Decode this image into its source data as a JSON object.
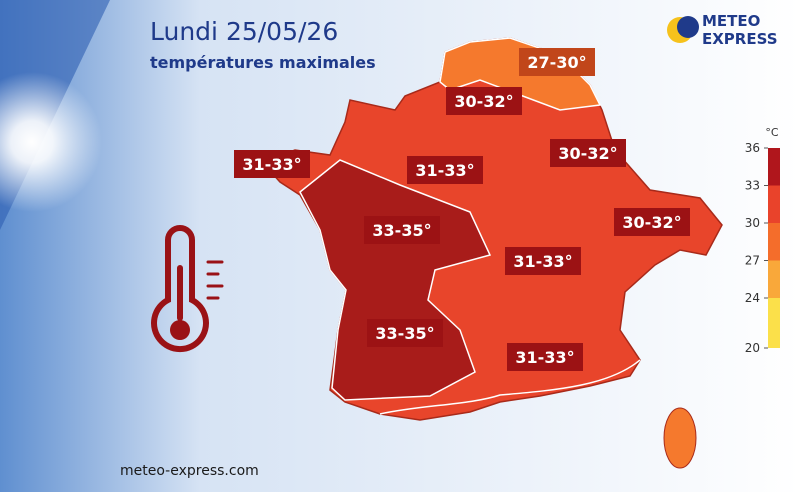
{
  "header": {
    "title": "Lundi 25/05/26",
    "subtitle": "températures maximales"
  },
  "logo": {
    "line1": "METEO",
    "line2": "EXPRESS"
  },
  "map": {
    "labels": [
      "27-30°",
      "30-32°",
      "31-33°",
      "31-33°",
      "30-32°",
      "33-35°",
      "30-32°",
      "31-33°",
      "33-35°",
      "31-33°"
    ]
  },
  "legend": {
    "unit": "°C",
    "ticks": [
      20,
      24,
      27,
      30,
      33,
      36
    ],
    "colors": [
      "#fbe04a",
      "#f9a83a",
      "#f46d2b",
      "#e9432b",
      "#b0161c"
    ]
  },
  "footer": {
    "website": "meteo-express.com"
  }
}
